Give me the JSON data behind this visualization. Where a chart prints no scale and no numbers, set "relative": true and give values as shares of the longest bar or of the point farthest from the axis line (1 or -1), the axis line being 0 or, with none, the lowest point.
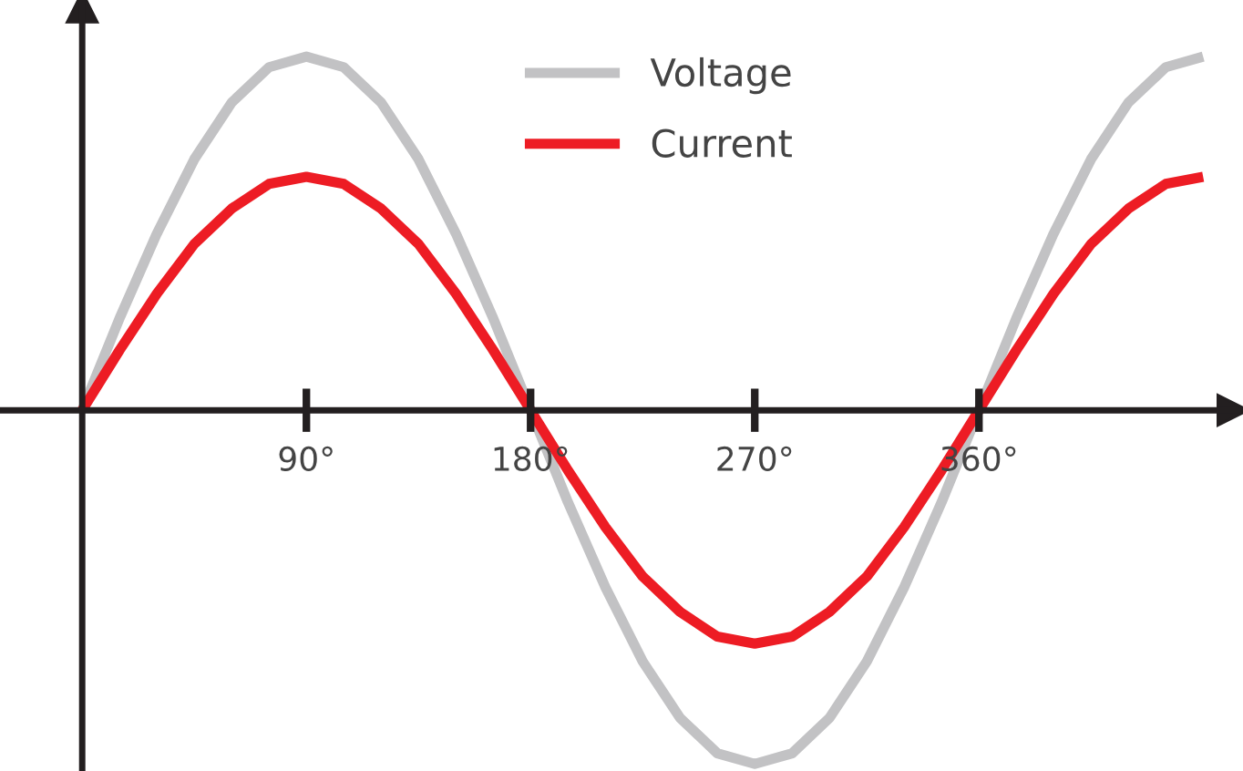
{
  "chart_data": {
    "type": "line",
    "relative": true,
    "x": [
      0,
      15,
      30,
      45,
      60,
      75,
      90,
      105,
      120,
      135,
      150,
      165,
      180,
      195,
      210,
      225,
      240,
      255,
      270,
      285,
      300,
      315,
      330,
      345,
      360,
      375,
      390,
      405,
      420,
      435,
      450
    ],
    "series": [
      {
        "name": "Voltage",
        "color": "#c2c2c4",
        "values": [
          0,
          0.26,
          0.5,
          0.71,
          0.87,
          0.97,
          1,
          0.97,
          0.87,
          0.71,
          0.5,
          0.26,
          0,
          -0.26,
          -0.5,
          -0.71,
          -0.87,
          -0.97,
          -1,
          -0.97,
          -0.87,
          -0.71,
          -0.5,
          -0.26,
          0,
          0.26,
          0.5,
          0.71,
          0.87,
          0.97,
          1
        ]
      },
      {
        "name": "Current",
        "color": "#ed1c24",
        "values": [
          0,
          0.17,
          0.33,
          0.47,
          0.57,
          0.64,
          0.66,
          0.64,
          0.57,
          0.47,
          0.33,
          0.17,
          0,
          -0.17,
          -0.33,
          -0.47,
          -0.57,
          -0.64,
          -0.66,
          -0.64,
          -0.57,
          -0.47,
          -0.33,
          -0.17,
          0,
          0.17,
          0.33,
          0.47,
          0.57,
          0.64,
          0.66
        ]
      }
    ],
    "xlim": [
      -33,
      466
    ],
    "xticks": [
      {
        "value": 90,
        "label": "90°"
      },
      {
        "value": 180,
        "label": "180°"
      },
      {
        "value": 270,
        "label": "270°"
      },
      {
        "value": 360,
        "label": "360°"
      }
    ],
    "grid": false,
    "legend": "top",
    "marker": "none",
    "line_style": "solid",
    "tick_labels": "x"
  }
}
